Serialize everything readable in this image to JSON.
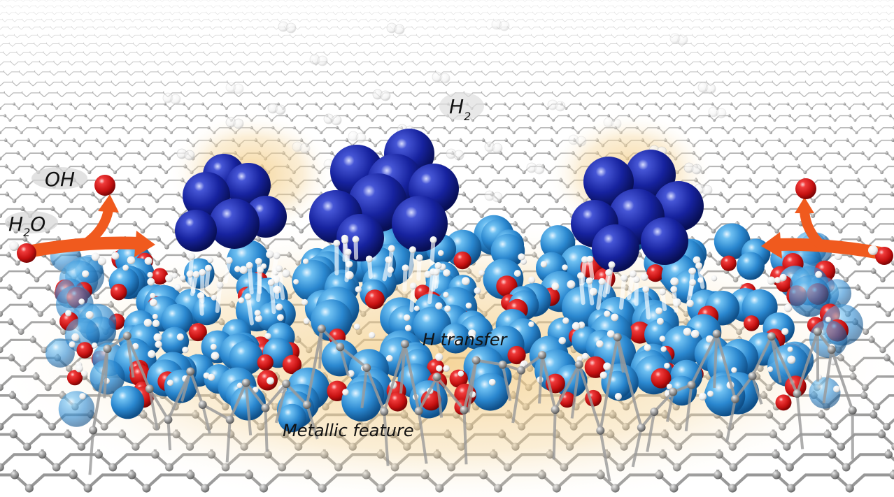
{
  "labels": {
    "oh": "OH",
    "h2o_h": "H",
    "h2o_sub": "2",
    "h2o_o": "O",
    "h2_h": "H",
    "h2_sub": "2",
    "h_transfer": "H transfer",
    "metallic": "Metallic feature"
  },
  "colors": {
    "graphene": "#8a8a8a",
    "graphene_node": "#9a9a9a",
    "cluster_atom": "#101e9e",
    "substrate_atom": "#2f8fd6",
    "oxygen_atom": "#d61f1f",
    "hydrogen_atom": "#ffffff",
    "arrow": "#f05a1e",
    "glow": "#f3c87a"
  },
  "icons": {
    "left_arrow": "curved-arrow-icon",
    "right_arrow": "curved-arrow-icon"
  }
}
